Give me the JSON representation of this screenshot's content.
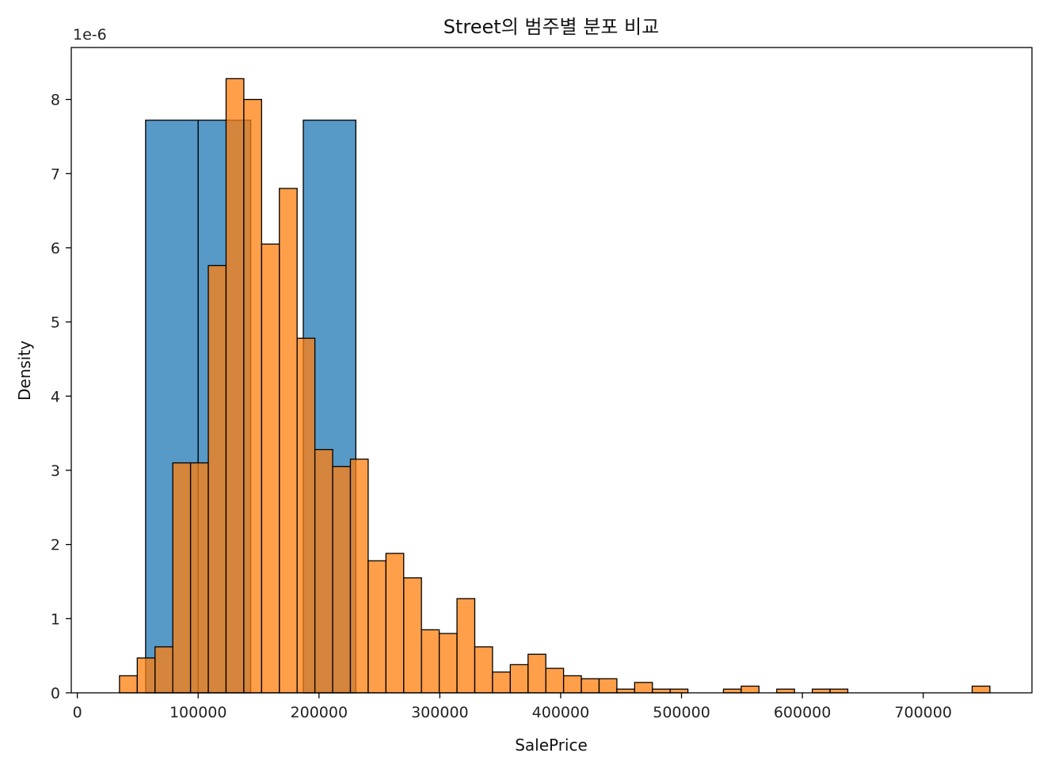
{
  "chart_data": {
    "type": "bar",
    "title": "Street의 범주별 분포 비교",
    "xlabel": "SalePrice",
    "ylabel": "Density",
    "offset_label": "1e-6",
    "xlim": [
      -5000,
      790000
    ],
    "ylim": [
      0,
      8.7
    ],
    "x_ticks": [
      0,
      100000,
      200000,
      300000,
      400000,
      500000,
      600000,
      700000
    ],
    "y_ticks": [
      0,
      1,
      2,
      3,
      4,
      5,
      6,
      7,
      8
    ],
    "grid": false,
    "series": [
      {
        "color": "#1f77b4",
        "opacity": 0.75,
        "bins": [
          {
            "start": 56500,
            "end": 100000,
            "density": 7.72
          },
          {
            "start": 100000,
            "end": 143500,
            "density": 7.72
          },
          {
            "start": 143500,
            "end": 187000,
            "density": 0
          },
          {
            "start": 187000,
            "end": 230500,
            "density": 7.72
          }
        ]
      },
      {
        "color": "#ff7f0e",
        "opacity": 0.75,
        "bin_start": 34900,
        "bin_width": 14700,
        "densities": [
          0.23,
          0.47,
          0.62,
          3.1,
          3.1,
          5.76,
          8.28,
          8.0,
          6.05,
          6.8,
          4.78,
          3.28,
          3.05,
          3.15,
          1.78,
          1.88,
          1.55,
          0.85,
          0.8,
          1.27,
          0.62,
          0.28,
          0.38,
          0.52,
          0.33,
          0.23,
          0.19,
          0.19,
          0.05,
          0.14,
          0.05,
          0.05,
          0,
          0,
          0.05,
          0.09,
          0,
          0.05,
          0,
          0.05,
          0.05,
          0,
          0,
          0,
          0,
          0,
          0,
          0,
          0.09
        ]
      }
    ]
  }
}
